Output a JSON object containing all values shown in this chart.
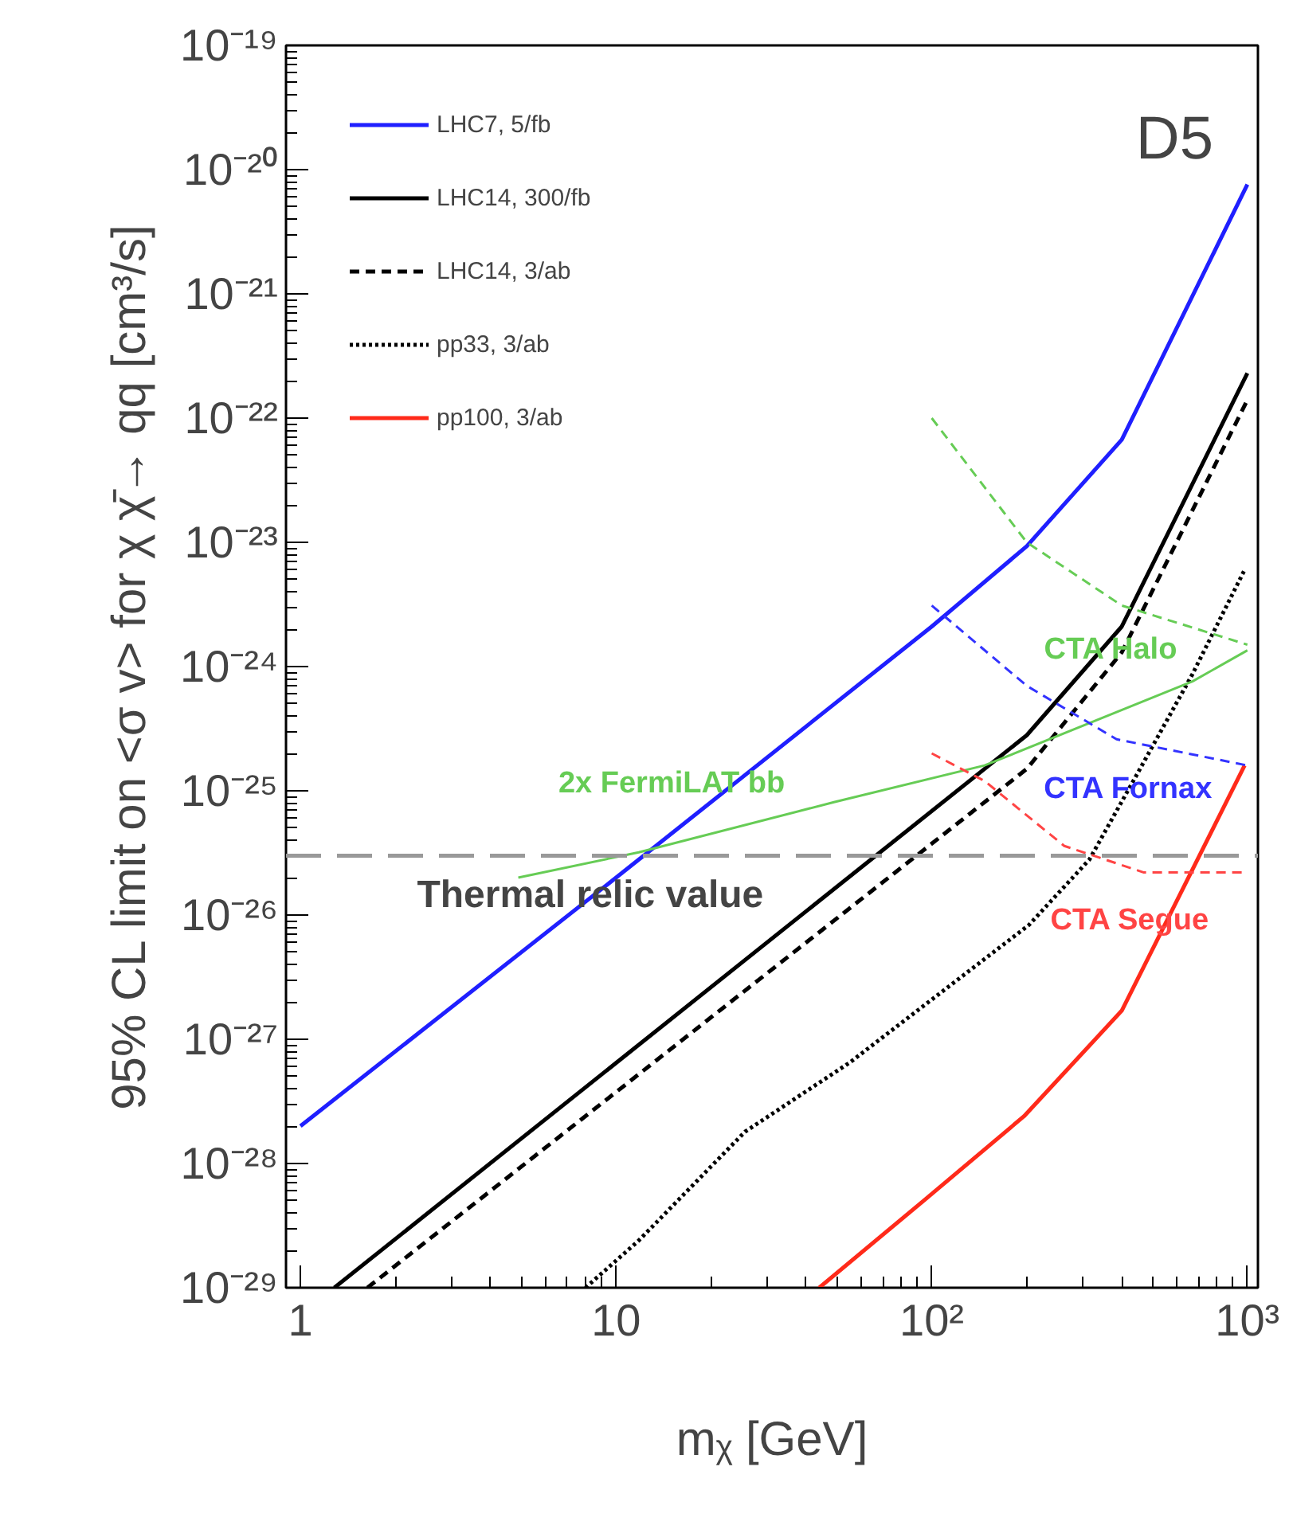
{
  "chart_data": {
    "type": "line",
    "xlabel": "mᵪ [GeV]",
    "ylabel": "95% CL limit on <σ v> for χ χ̄→ qq [cm³/s]",
    "log": "xy",
    "grid": false,
    "legend": "top left",
    "xlim": [
      0.9,
      1080
    ],
    "ylim": [
      1e-29,
      1e-19
    ],
    "xticks": [
      1,
      10,
      {
        "value": 100,
        "label": "10²"
      },
      {
        "value": 1000,
        "label": "10³"
      }
    ],
    "yticks": [
      {
        "value": 1e-29,
        "label": "10⁻²⁹"
      },
      {
        "value": 1e-28,
        "label": "10⁻²⁸"
      },
      {
        "value": 1e-27,
        "label": "10⁻²⁷"
      },
      {
        "value": 1e-26,
        "label": "10⁻²⁶"
      },
      {
        "value": 1e-25,
        "label": "10⁻²⁵"
      },
      {
        "value": 1e-24,
        "label": "10⁻²⁴"
      },
      {
        "value": 1e-23,
        "label": "10⁻²³"
      },
      {
        "value": 1e-22,
        "label": "10⁻²²"
      },
      {
        "value": 1e-21,
        "label": "10⁻²¹"
      },
      {
        "value": 1e-20,
        "label": "10⁻²⁰"
      },
      {
        "value": 1e-19,
        "label": "10⁻¹⁹"
      }
    ],
    "series": [
      {
        "name": "LHC7, 5/fb",
        "color": "#1f1fff",
        "line_style": "solid",
        "x": [
          1,
          10,
          100,
          200,
          400,
          1000
        ],
        "values": [
          2e-28,
          2e-26,
          2.1e-24,
          9.3e-24,
          6.7e-23,
          7.6e-21
        ]
      },
      {
        "name": "LHC14, 300/fb",
        "color": "#000000",
        "line_style": "solid",
        "x": [
          1.28,
          200,
          400,
          1000
        ],
        "values": [
          1e-29,
          2.8e-25,
          2.1e-24,
          2.3e-22
        ]
      },
      {
        "name": "LHC14, 3/ab",
        "color": "#000000",
        "line_style": "dashed",
        "x": [
          1.63,
          200,
          400,
          1000
        ],
        "values": [
          1e-29,
          1.5e-25,
          1.3e-24,
          1.4e-22
        ]
      },
      {
        "name": "pp33, 3/ab",
        "color": "#000000",
        "line_style": "dotted",
        "x": [
          8,
          11.8,
          25.6,
          55,
          203,
          316,
          435,
          670,
          980
        ],
        "values": [
          1e-29,
          2.4e-29,
          1.8e-28,
          6.5e-28,
          8.3e-27,
          2.8e-26,
          1.2e-25,
          8.7e-25,
          6e-24
        ]
      },
      {
        "name": "pp100, 3/ab",
        "color": "#ff2a1a",
        "line_style": "solid",
        "x": [
          44,
          95,
          196,
          400,
          980
        ],
        "values": [
          1e-29,
          5.1e-29,
          2.4e-28,
          1.7e-27,
          1.6e-25
        ]
      },
      {
        "color": "#66cc55",
        "line_style": "solid",
        "x": [
          4.9,
          11.8,
          49,
          147,
          670,
          1000
        ],
        "values": [
          2e-26,
          3.2e-26,
          8.1e-26,
          1.6e-25,
          7.6e-25,
          1.35e-24
        ]
      },
      {
        "color": "#66cc55",
        "line_style": "dashed",
        "x": [
          100,
          200,
          400,
          1000
        ],
        "values": [
          1e-22,
          1e-23,
          3.1e-24,
          1.5e-24
        ]
      },
      {
        "color": "#3333ff",
        "line_style": "dashed",
        "x": [
          100,
          200,
          385,
          1000
        ],
        "values": [
          3.1e-24,
          7e-25,
          2.6e-25,
          1.6e-25
        ]
      },
      {
        "color": "#ff4444",
        "line_style": "dashed",
        "x": [
          100,
          147,
          263,
          470,
          1000
        ],
        "values": [
          2e-25,
          1.2e-25,
          3.6e-26,
          2.2e-26,
          2.2e-26
        ]
      }
    ],
    "ref_lines": [
      {
        "axis": "y",
        "value": 3e-26,
        "label": "Thermal relic value",
        "color": "#999999",
        "line_style": "dashed"
      }
    ],
    "annotations": [
      "D5",
      {
        "text": "2x FermiLAT bb",
        "x": 15,
        "y": 3.7e-26
      },
      {
        "text": "CTA Halo",
        "x": 370,
        "y": 3.3e-24
      },
      {
        "text": "CTA Fornax",
        "x": 420,
        "y": 2.5e-25
      },
      {
        "text": "CTA Segue",
        "x": 425,
        "y": 2.2e-26
      }
    ]
  }
}
